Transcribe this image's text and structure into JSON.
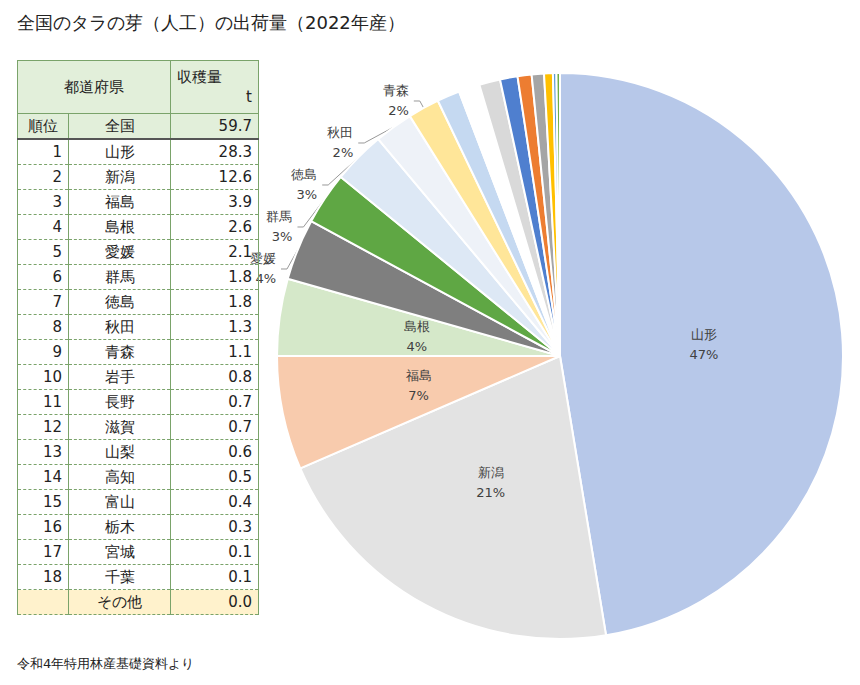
{
  "chart_data": {
    "type": "pie",
    "title": "全国のタラの芽（人工）の出荷量（2022年産）",
    "categories": [
      "山形",
      "新潟",
      "福島",
      "島根",
      "愛媛",
      "群馬",
      "徳島",
      "秋田",
      "青森",
      "岩手",
      "長野",
      "滋賀",
      "山梨",
      "高知",
      "富山",
      "栃木",
      "宮城",
      "千葉"
    ],
    "values": [
      47.4,
      21.1,
      6.5,
      4.4,
      3.5,
      3.0,
      3.0,
      2.2,
      1.8,
      1.3,
      1.2,
      1.2,
      1.0,
      0.8,
      0.7,
      0.5,
      0.2,
      0.2
    ],
    "value_labels": [
      "47%",
      "21%",
      "7%",
      "4%",
      "4%",
      "3%",
      "3%",
      "2%",
      "2%",
      null,
      null,
      null,
      null,
      null,
      null,
      null,
      null,
      null
    ],
    "colors": [
      "#b7c8e9",
      "#e3e3e3",
      "#f8cbad",
      "#d5e8c9",
      "#7f7f7f",
      "#5fa744",
      "#dde8f5",
      "#eef2f8",
      "#ffe699",
      "#c5d9f1",
      "#ffffff",
      "#d9d9d9",
      "#4f7fcf",
      "#ed7d31",
      "#a5a5a5",
      "#ffc000",
      "#5b9bd5",
      "#70ad47"
    ],
    "data_labels": true
  },
  "table": {
    "header": {
      "name": "都道府県",
      "value": "収穫量",
      "unit": "t"
    },
    "total": {
      "rank": "順位",
      "name": "全国",
      "value": "59.7"
    },
    "rows": [
      [
        "1",
        "山形",
        "28.3"
      ],
      [
        "2",
        "新潟",
        "12.6"
      ],
      [
        "3",
        "福島",
        "3.9"
      ],
      [
        "4",
        "島根",
        "2.6"
      ],
      [
        "5",
        "愛媛",
        "2.1"
      ],
      [
        "6",
        "群馬",
        "1.8"
      ],
      [
        "7",
        "徳島",
        "1.8"
      ],
      [
        "8",
        "秋田",
        "1.3"
      ],
      [
        "9",
        "青森",
        "1.1"
      ],
      [
        "10",
        "岩手",
        "0.8"
      ],
      [
        "11",
        "長野",
        "0.7"
      ],
      [
        "12",
        "滋賀",
        "0.7"
      ],
      [
        "13",
        "山梨",
        "0.6"
      ],
      [
        "14",
        "高知",
        "0.5"
      ],
      [
        "15",
        "富山",
        "0.4"
      ],
      [
        "16",
        "栃木",
        "0.3"
      ],
      [
        "17",
        "宮城",
        "0.1"
      ],
      [
        "18",
        "千葉",
        "0.1"
      ]
    ],
    "other": {
      "name": "その他",
      "value": "0.0"
    }
  },
  "source": "令和4年特用林産基礎資料より"
}
